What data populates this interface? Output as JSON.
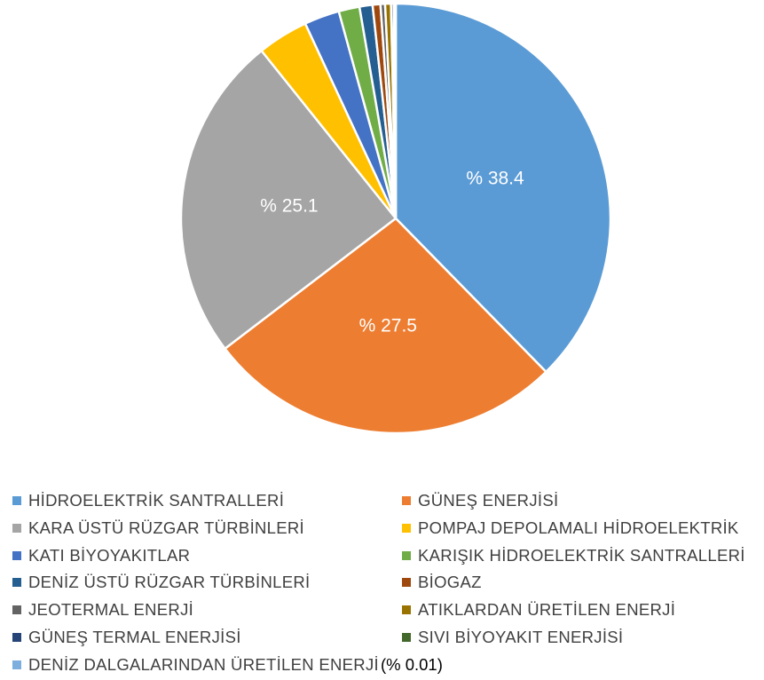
{
  "chart_data": {
    "type": "pie",
    "title": "",
    "slices": [
      {
        "name": "HİDROELEKTRİK SANTRALLERİ",
        "value": 38.4,
        "label": "% 38.4",
        "color": "#5b9bd5"
      },
      {
        "name": "GÜNEŞ ENERJİSİ",
        "value": 27.5,
        "label": "% 27.5",
        "color": "#ed7d31"
      },
      {
        "name": "KARA ÜSTÜ RÜZGAR TÜRBİNLERİ",
        "value": 25.1,
        "label": "% 25.1",
        "color": "#a5a5a5"
      },
      {
        "name": "POMPAJ DEPOLAMALI HİDROELEKTRİK",
        "value": 3.9,
        "label": "",
        "color": "#ffc000"
      },
      {
        "name": "KATI BİYOYAKITLAR",
        "value": 2.7,
        "label": "",
        "color": "#4472c4"
      },
      {
        "name": "KARIŞIK HİDROELEKTRİK SANTRALLERİ",
        "value": 1.6,
        "label": "",
        "color": "#70ad47"
      },
      {
        "name": "DENİZ ÜSTÜ RÜZGAR TÜRBİNLERİ",
        "value": 1.0,
        "label": "",
        "color": "#255e91"
      },
      {
        "name": "BİOGAZ",
        "value": 0.6,
        "label": "",
        "color": "#9e480e"
      },
      {
        "name": "JEOTERMAL ENERJİ",
        "value": 0.35,
        "label": "",
        "color": "#636363"
      },
      {
        "name": "ATIKLARDAN ÜRETİLEN ENERJİ",
        "value": 0.45,
        "label": "",
        "color": "#997300"
      },
      {
        "name": "GÜNEŞ TERMAL ENERJİSİ",
        "value": 0.2,
        "label": "",
        "color": "#264478"
      },
      {
        "name": "SIVI BİYOYAKIT ENERJİSİ",
        "value": 0.15,
        "label": "",
        "color": "#43682b"
      },
      {
        "name": "DENİZ DALGALARINDAN ÜRETİLEN ENERJİ",
        "value": 0.01,
        "label": "",
        "color": "#7cafdd",
        "note": "(% 0.01)"
      }
    ],
    "legend_position": "bottom",
    "legend_columns": 2
  }
}
